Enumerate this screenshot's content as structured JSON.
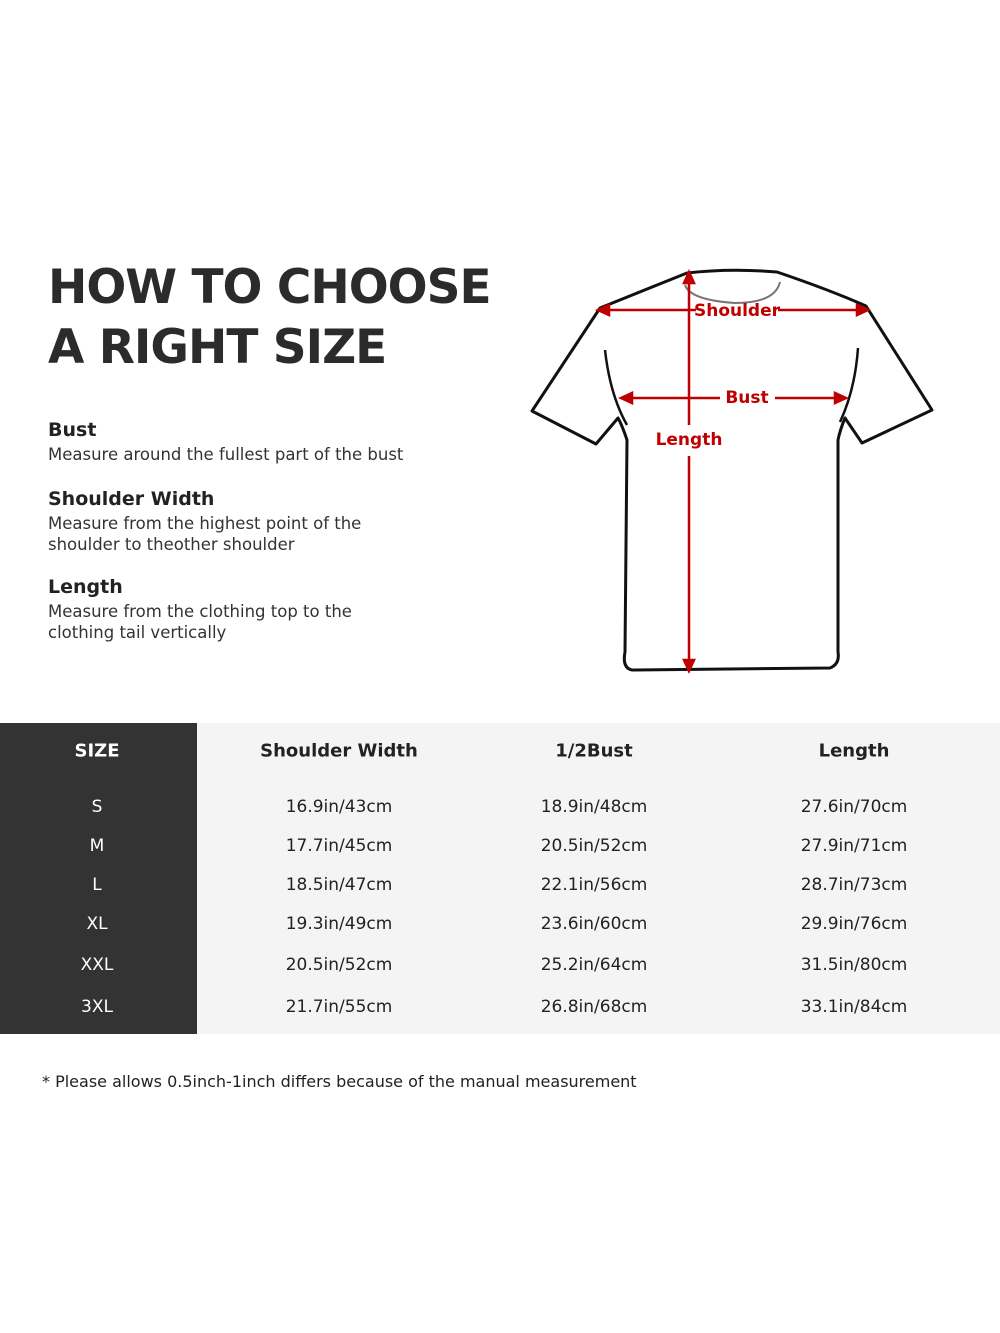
{
  "title": {
    "line1": "HOW TO CHOOSE",
    "line2": "A RIGHT SIZE"
  },
  "guide": [
    {
      "heading": "Bust",
      "text": "Measure around the fullest part of the bust"
    },
    {
      "heading": "Shoulder Width",
      "text1": "Measure from the highest point of the",
      "text2": "shoulder to theother shoulder"
    },
    {
      "heading": "Length",
      "text1": "Measure from the clothing top to the",
      "text2": "clothing tail vertically"
    }
  ],
  "diagram": {
    "shoulder": "Shoulder",
    "bust": "Bust",
    "length": "Length",
    "accent_color": "#c00000"
  },
  "table": {
    "headers": [
      "SIZE",
      "Shoulder Width",
      "1/2Bust",
      "Length"
    ],
    "rows": [
      [
        "S",
        "16.9in/43cm",
        "18.9in/48cm",
        "27.6in/70cm"
      ],
      [
        "M",
        "17.7in/45cm",
        "20.5in/52cm",
        "27.9in/71cm"
      ],
      [
        "L",
        "18.5in/47cm",
        "22.1in/56cm",
        "28.7in/73cm"
      ],
      [
        "XL",
        "19.3in/49cm",
        "23.6in/60cm",
        "29.9in/76cm"
      ],
      [
        "XXL",
        "20.5in/52cm",
        "25.2in/64cm",
        "31.5in/80cm"
      ],
      [
        "3XL",
        "21.7in/55cm",
        "26.8in/68cm",
        "33.1in/84cm"
      ]
    ]
  },
  "note": "* Please allows 0.5inch-1inch differs because of the  manual measurement"
}
